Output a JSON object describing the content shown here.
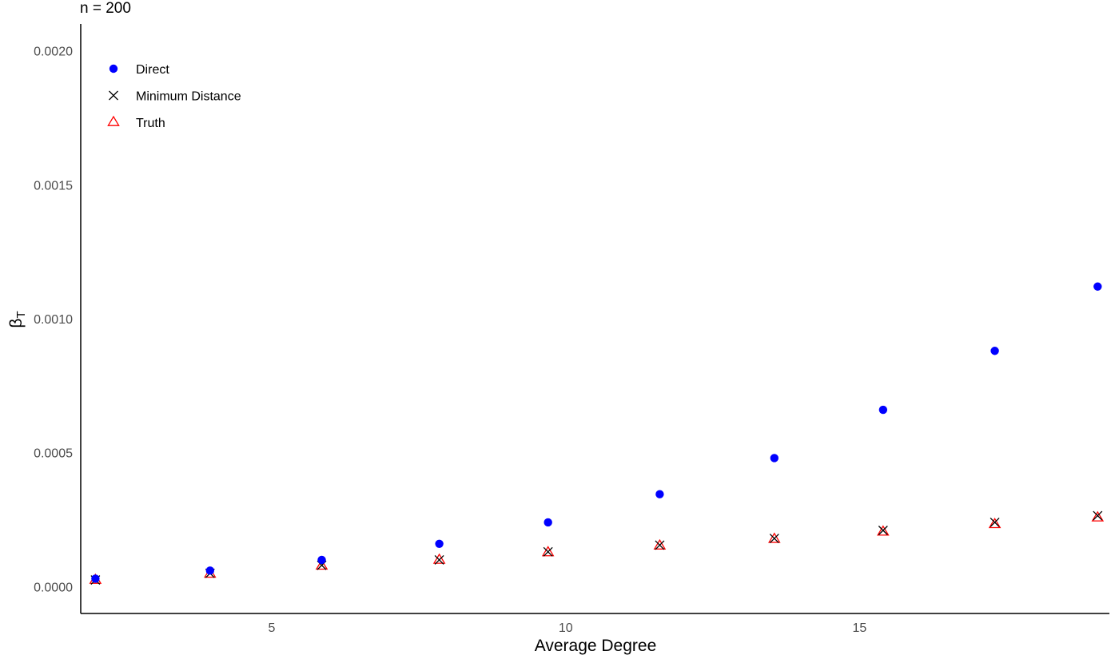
{
  "chart_data": {
    "type": "scatter",
    "title": "n = 200",
    "xlabel": "Average Degree",
    "ylabel": "βT",
    "ylabel_main": "β",
    "ylabel_sub": "T",
    "xlim": [
      1.75,
      19.25
    ],
    "ylim": [
      -0.0001,
      0.0021
    ],
    "x_ticks": [
      5,
      10,
      15
    ],
    "x_tick_labels": [
      "5",
      "10",
      "15"
    ],
    "y_ticks": [
      0.0,
      0.0005,
      0.001,
      0.0015,
      0.002
    ],
    "y_tick_labels": [
      "0.0000",
      "0.0005",
      "0.0010",
      "0.0015",
      "0.0020"
    ],
    "grid": false,
    "legend_position": "top-left",
    "x": [
      2.0,
      3.95,
      5.85,
      7.85,
      9.7,
      11.6,
      13.55,
      15.4,
      17.3,
      19.05
    ],
    "series": [
      {
        "name": "Direct",
        "marker": "circle",
        "color": "#0000ff",
        "values": [
          3e-05,
          6e-05,
          0.0001,
          0.00016,
          0.00024,
          0.000345,
          0.00048,
          0.00066,
          0.00088,
          0.00112
        ]
      },
      {
        "name": "Minimum Distance",
        "marker": "cross",
        "color": "#000000",
        "values": [
          2.5e-05,
          5e-05,
          8e-05,
          0.0001,
          0.00013,
          0.000155,
          0.00018,
          0.00021,
          0.00024,
          0.000265
        ]
      },
      {
        "name": "Truth",
        "marker": "triangle",
        "color": "#ff0000",
        "values": [
          2.5e-05,
          4.8e-05,
          7.8e-05,
          0.0001,
          0.000128,
          0.000153,
          0.000178,
          0.000205,
          0.000233,
          0.000258
        ]
      }
    ]
  }
}
